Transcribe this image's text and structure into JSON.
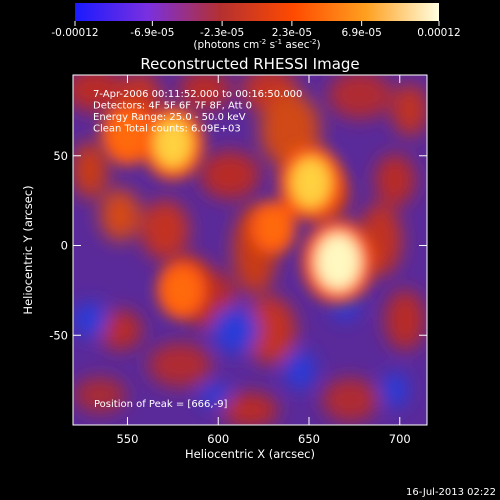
{
  "chart_data": {
    "type": "heatmap",
    "title": "Reconstructed RHESSI Image",
    "xlabel": "Heliocentric X (arcsec)",
    "ylabel": "Heliocentric Y (arcsec)",
    "xlim": [
      520,
      715
    ],
    "ylim": [
      -100,
      95
    ],
    "x_ticks": [
      550,
      600,
      650,
      700
    ],
    "y_ticks": [
      -50,
      0,
      50
    ],
    "colorbar": {
      "min": -0.00012,
      "max": 0.00012,
      "tick_labels": [
        "-0.00012",
        "-6.9e-05",
        "-2.3e-05",
        "2.3e-05",
        "6.9e-05",
        "0.00012"
      ],
      "tick_values": [
        -0.00012,
        -6.9e-05,
        -2.3e-05,
        2.3e-05,
        6.9e-05,
        0.00012
      ],
      "unit_label": "(photons cm",
      "unit_exp1": "-2",
      "unit_mid": " s",
      "unit_exp2": "-1",
      "unit_mid2": " asec",
      "unit_exp3": "-2",
      "unit_end": ")",
      "colors": [
        "#1a1aff",
        "#7a30e0",
        "#b43030",
        "#ff4a00",
        "#ffa020",
        "#ffffe0"
      ]
    },
    "annotations": [
      "7-Apr-2006 00:11:52.000 to 00:16:50.000",
      "Detectors: 4F 5F 6F 7F 8F, Att 0",
      "Energy Range: 25.0 - 50.0 keV",
      "Clean     Total counts: 6.09E+03"
    ],
    "peak_text": "Position of Peak = [666,-9]",
    "peak": {
      "x": 666,
      "y": -9
    },
    "bright_sources": [
      {
        "x": 666,
        "y": -9,
        "intensity": 0.00012
      },
      {
        "x": 651,
        "y": 35,
        "intensity": 0.0001
      },
      {
        "x": 575,
        "y": 57,
        "intensity": 9.5e-05
      },
      {
        "x": 550,
        "y": 62,
        "intensity": 7e-05
      },
      {
        "x": 580,
        "y": -25,
        "intensity": 6e-05
      },
      {
        "x": 630,
        "y": 10,
        "intensity": 5e-05
      }
    ]
  },
  "footer_timestamp": "16-Jul-2013 02:22"
}
